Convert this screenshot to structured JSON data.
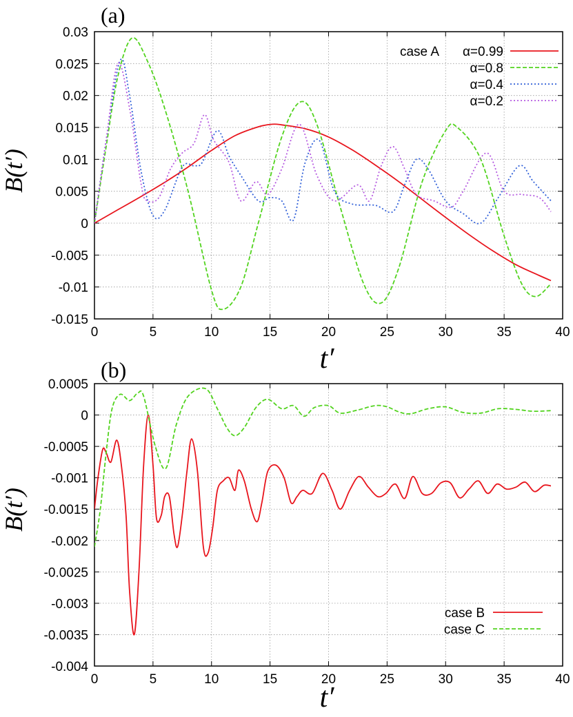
{
  "chart_data": [
    {
      "type": "line",
      "panel_label": "(a)",
      "xlabel": "t′",
      "ylabel": "B(t′)",
      "xlim": [
        0,
        40
      ],
      "ylim": [
        -0.015,
        0.03
      ],
      "xticks": [
        "0",
        "5",
        "10",
        "15",
        "20",
        "25",
        "30",
        "35",
        "40"
      ],
      "yticks": [
        "0.03",
        "0.025",
        "0.02",
        "0.015",
        "0.01",
        "0.005",
        "0",
        "-0.005",
        "-0.01",
        "-0.015"
      ],
      "grid": true,
      "legend_position": "top-right",
      "legend_group_label": "case A",
      "series": [
        {
          "name": "α=0.99",
          "color": "#e8141c",
          "dash": "solid",
          "x": [
            0,
            2,
            4,
            6,
            8,
            10,
            12,
            14,
            15.2,
            16,
            18,
            20,
            22,
            24,
            26,
            28,
            30,
            32,
            34,
            36,
            38,
            39
          ],
          "y": [
            0,
            0.0021,
            0.0042,
            0.0064,
            0.0088,
            0.0114,
            0.0137,
            0.0151,
            0.0155,
            0.0154,
            0.0148,
            0.0135,
            0.0115,
            0.0091,
            0.0065,
            0.0037,
            0.0009,
            -0.0018,
            -0.0043,
            -0.0065,
            -0.0082,
            -0.009
          ]
        },
        {
          "name": "α=0.8",
          "color": "#52d31e",
          "dash": "dashed",
          "x": [
            0,
            1,
            2,
            3.2,
            4.5,
            6,
            8,
            10,
            11,
            12.5,
            14,
            16,
            17.6,
            19,
            21,
            23,
            24.5,
            26,
            28,
            30,
            31,
            33,
            35,
            36.5,
            37.7,
            39
          ],
          "y": [
            0,
            0.012,
            0.023,
            0.029,
            0.0255,
            0.018,
            0.005,
            -0.0105,
            -0.0135,
            -0.01,
            0,
            0.0135,
            0.019,
            0.0155,
            0.0025,
            -0.0095,
            -0.0125,
            -0.007,
            0.0065,
            0.0145,
            0.015,
            0.01,
            -0.002,
            -0.0095,
            -0.0115,
            -0.0095
          ]
        },
        {
          "name": "α=0.4",
          "color": "#2f5fd8",
          "dash": "dotted",
          "x": [
            0,
            1,
            2.2,
            3,
            4,
            5,
            6,
            7.5,
            8.5,
            9.2,
            10.5,
            11.5,
            12.5,
            14,
            15,
            16,
            17,
            18,
            19.2,
            20.5,
            22,
            24,
            25.5,
            26.5,
            27.5,
            28.5,
            30,
            31.5,
            33,
            34.5,
            36.3,
            37.5,
            39
          ],
          "y": [
            0,
            0.013,
            0.0255,
            0.02,
            0.008,
            0.0012,
            0.002,
            0.0088,
            0.009,
            0.0095,
            0.0145,
            0.0105,
            0.0075,
            0.0035,
            0.004,
            0.0035,
            0.0005,
            0.0095,
            0.013,
            0.005,
            0.003,
            0.0028,
            0.0018,
            0.006,
            0.01,
            0.0085,
            0.0035,
            0.0015,
            0,
            0.004,
            0.009,
            0.0065,
            0.0035
          ]
        },
        {
          "name": "α=0.2",
          "color": "#b55ae0",
          "dash": "dotted",
          "x": [
            0,
            1,
            2,
            3,
            4,
            4.5,
            5.5,
            6.5,
            7.5,
            8.5,
            9.4,
            10.2,
            11.5,
            12.5,
            13.8,
            14.8,
            16,
            17.5,
            19,
            20.5,
            22.5,
            23.5,
            24.5,
            25.5,
            26.5,
            27.5,
            29,
            30.5,
            31.5,
            33.5,
            35,
            36.5,
            38,
            39
          ],
          "y": [
            0,
            0.013,
            0.025,
            0.018,
            0.006,
            0.0035,
            0.004,
            0.0085,
            0.011,
            0.0125,
            0.017,
            0.013,
            0.0095,
            0.0035,
            0.0065,
            0.0045,
            0.0085,
            0.0155,
            0.0075,
            0.0035,
            0.006,
            0.0035,
            0.009,
            0.012,
            0.0085,
            0.0045,
            0.0035,
            0.0025,
            0.005,
            0.011,
            0.005,
            0.0045,
            0.004,
            0.0018
          ]
        }
      ]
    },
    {
      "type": "line",
      "panel_label": "(b)",
      "xlabel": "t′",
      "ylabel": "B(t′)",
      "xlim": [
        0,
        40
      ],
      "ylim": [
        -0.004,
        0.0005
      ],
      "xticks": [
        "0",
        "5",
        "10",
        "15",
        "20",
        "25",
        "30",
        "35",
        "40"
      ],
      "yticks": [
        "0.0005",
        "0",
        "-0.0005",
        "-0.001",
        "-0.0015",
        "-0.002",
        "-0.0025",
        "-0.003",
        "-0.0035",
        "-0.004"
      ],
      "grid": true,
      "legend_position": "bottom-right",
      "series": [
        {
          "name": "case B",
          "color": "#e8141c",
          "dash": "solid",
          "x": [
            0,
            0.3,
            0.7,
            1.0,
            1.4,
            1.9,
            2.3,
            2.7,
            3.0,
            3.4,
            3.8,
            4.2,
            4.6,
            5.0,
            5.3,
            5.7,
            6.0,
            6.4,
            6.8,
            7.1,
            7.5,
            7.9,
            8.3,
            8.8,
            9.3,
            9.7,
            10.1,
            10.5,
            11.0,
            11.5,
            12.0,
            12.3,
            12.8,
            13.4,
            13.9,
            14.3,
            14.8,
            15.5,
            16.2,
            16.8,
            17.3,
            17.8,
            18.6,
            19.5,
            20.3,
            21.0,
            21.8,
            22.6,
            23.4,
            24.2,
            24.9,
            25.7,
            26.5,
            27.2,
            28.0,
            28.8,
            29.6,
            30.4,
            31.2,
            32.0,
            32.8,
            33.6,
            34.4,
            35.2,
            36.0,
            36.8,
            37.6,
            38.4,
            39.0
          ],
          "y": [
            -0.0015,
            -0.001,
            -0.00055,
            -0.0006,
            -0.00075,
            -0.0004,
            -0.0008,
            -0.0016,
            -0.0028,
            -0.0035,
            -0.0025,
            -0.0008,
            0,
            -0.0008,
            -0.00165,
            -0.0016,
            -0.0013,
            -0.0013,
            -0.0019,
            -0.0021,
            -0.0016,
            -0.0009,
            -0.00038,
            -0.0009,
            -0.0021,
            -0.0022,
            -0.0018,
            -0.0012,
            -0.00105,
            -0.001,
            -0.0012,
            -0.00088,
            -0.00105,
            -0.0015,
            -0.0017,
            -0.0014,
            -0.0009,
            -0.0008,
            -0.001,
            -0.0014,
            -0.0013,
            -0.0012,
            -0.00125,
            -0.00093,
            -0.0012,
            -0.0015,
            -0.0012,
            -0.00098,
            -0.00115,
            -0.0013,
            -0.00125,
            -0.0011,
            -0.00133,
            -0.00098,
            -0.00125,
            -0.00125,
            -0.00108,
            -0.00108,
            -0.00132,
            -0.00118,
            -0.00105,
            -0.00125,
            -0.0011,
            -0.00118,
            -0.00115,
            -0.00107,
            -0.00122,
            -0.00112,
            -0.00113
          ]
        },
        {
          "name": "case C",
          "color": "#52d31e",
          "dash": "dashed",
          "x": [
            0,
            0.5,
            1.0,
            1.5,
            2.2,
            3.0,
            3.7,
            4.2,
            5.2,
            6.1,
            7.0,
            8.0,
            9.5,
            10.5,
            11.3,
            12.0,
            12.8,
            13.8,
            14.8,
            16.0,
            17.0,
            17.9,
            18.8,
            20.0,
            21.0,
            22.5,
            24.0,
            25.0,
            26.0,
            27.0,
            28.5,
            30.0,
            31.5,
            33.0,
            34.5,
            36.0,
            37.5,
            39.0
          ],
          "y": [
            -0.0021,
            -0.0015,
            -0.0006,
            0.0001,
            0.00033,
            0.00023,
            0.00035,
            0.0003,
            -0.0005,
            -0.00085,
            -0.00015,
            0.0003,
            0.00042,
            0.0001,
            -0.0002,
            -0.00033,
            -0.0002,
            0.00012,
            0.00025,
            0.0001,
            0.00015,
            -2e-05,
            0.00012,
            0.00015,
            3e-05,
            8e-05,
            0.00015,
            0.00013,
            5e-05,
            2e-05,
            0.0001,
            0.00013,
            4e-05,
            3e-05,
            0.0001,
            9e-05,
            6e-05,
            7e-05
          ]
        }
      ]
    }
  ]
}
